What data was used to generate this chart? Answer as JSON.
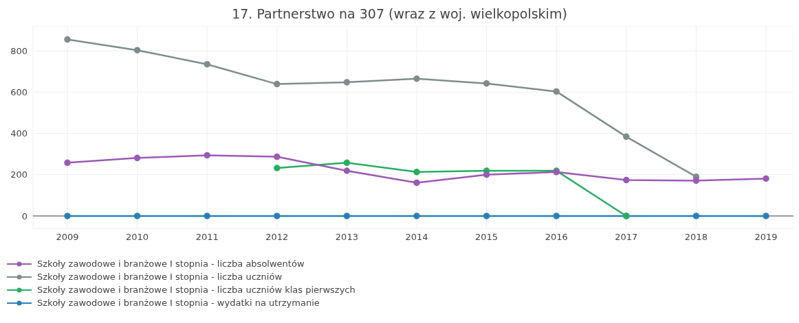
{
  "chart_data": {
    "type": "line",
    "title": "17. Partnerstwo na 307  (wraz z woj. wielkopolskim)",
    "categories": [
      "2009",
      "2010",
      "2011",
      "2012",
      "2013",
      "2014",
      "2015",
      "2016",
      "2017",
      "2018",
      "2019"
    ],
    "series": [
      {
        "name": "Szkoły zawodowe i branżowe I stopnia - liczba absolwentów",
        "color": "#9b59b6",
        "values": [
          258,
          281,
          294,
          287,
          219,
          161,
          200,
          213,
          174,
          171,
          181
        ]
      },
      {
        "name": "Szkoły zawodowe i branżowe I stopnia - liczba uczniów",
        "color": "#7f8c8d",
        "values": [
          855,
          803,
          735,
          639,
          648,
          665,
          642,
          603,
          384,
          190,
          null
        ]
      },
      {
        "name": "Szkoły zawodowe i branżowe I stopnia - liczba uczniów klas pierwszych",
        "color": "#27ae60",
        "values": [
          null,
          null,
          null,
          232,
          258,
          213,
          219,
          219,
          0,
          null,
          null
        ]
      },
      {
        "name": "Szkoły zawodowe i branżowe I stopnia - wydatki na utrzymanie",
        "color": "#2980b9",
        "values": [
          0,
          0,
          0,
          0,
          0,
          0,
          0,
          0,
          0,
          0,
          0
        ]
      }
    ],
    "ylim": [
      -60,
      920
    ],
    "yticks": [
      0,
      200,
      400,
      600,
      800
    ],
    "grid": true,
    "legend": "bottom left",
    "marker": "circle",
    "line_style": "solid"
  }
}
